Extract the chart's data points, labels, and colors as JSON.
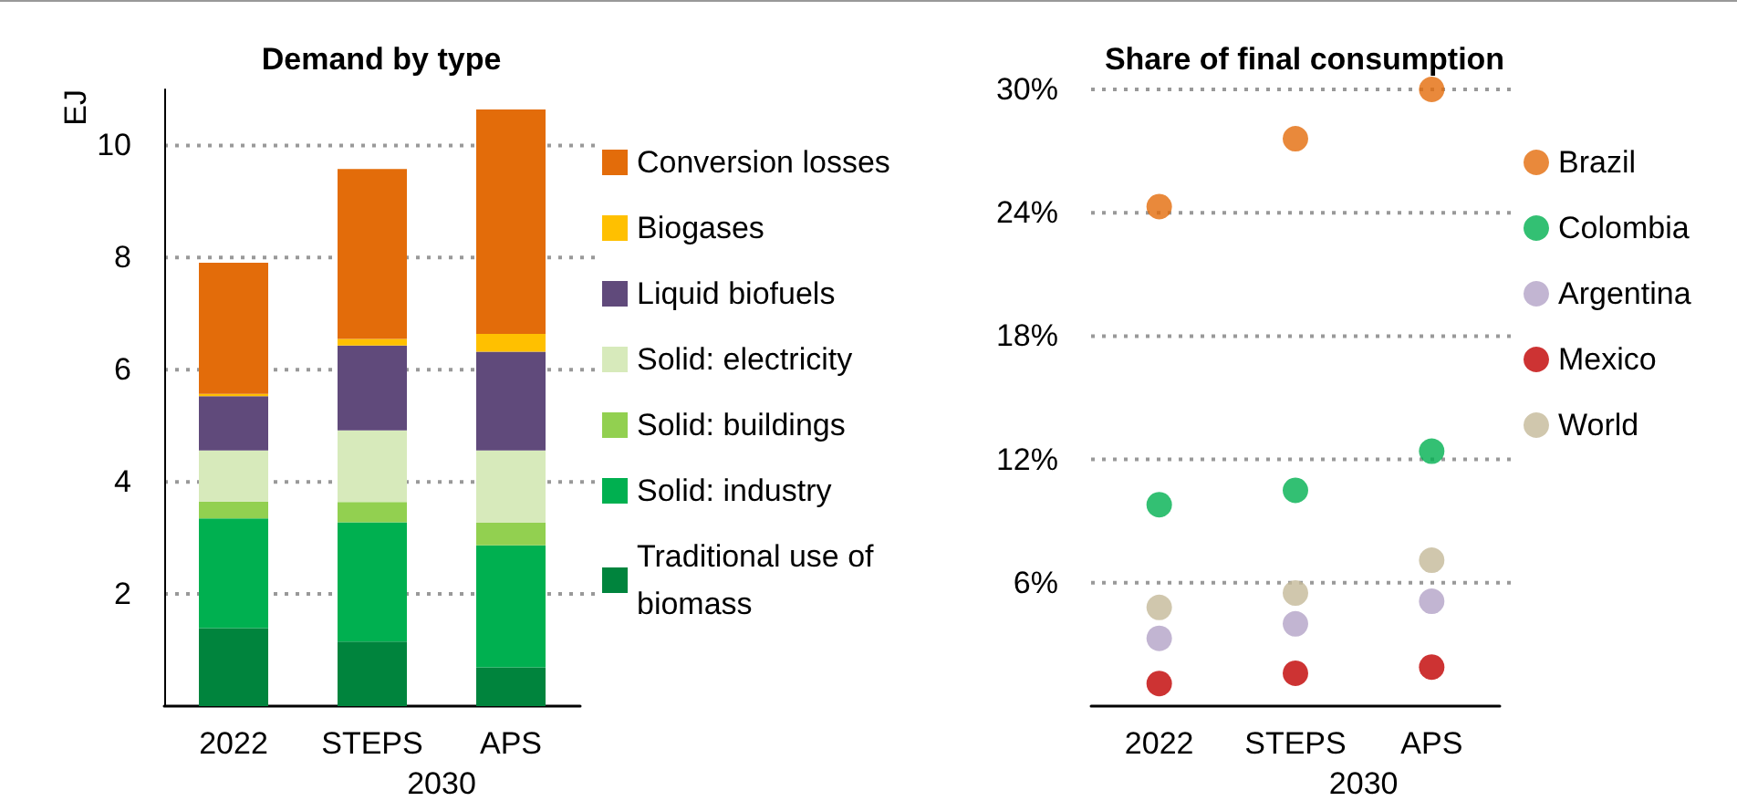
{
  "chart_data": [
    {
      "type": "bar",
      "title": "Demand by type",
      "ylabel": "EJ",
      "categories": [
        "2022",
        "STEPS",
        "APS"
      ],
      "annotations": [
        "2030"
      ],
      "stacked": true,
      "series": [
        {
          "name": "Traditional use of biomass",
          "color": "#00843d",
          "values": [
            1.39,
            1.15,
            0.69
          ]
        },
        {
          "name": "Solid: industry",
          "color": "#00b050",
          "values": [
            1.96,
            2.13,
            2.18
          ]
        },
        {
          "name": "Solid: buildings",
          "color": "#92d050",
          "values": [
            0.3,
            0.36,
            0.4
          ]
        },
        {
          "name": "Solid: electricity",
          "color": "#d7eabb",
          "values": [
            0.91,
            1.28,
            1.29
          ]
        },
        {
          "name": "Liquid biofuels",
          "color": "#604a7b",
          "values": [
            0.97,
            1.51,
            1.76
          ]
        },
        {
          "name": "Biogases",
          "color": "#ffc000",
          "values": [
            0.04,
            0.12,
            0.32
          ]
        },
        {
          "name": "Conversion losses",
          "color": "#e36c0a",
          "values": [
            2.34,
            3.03,
            4.0
          ]
        }
      ],
      "ylim": [
        0,
        11
      ],
      "yticks": [
        2,
        4,
        6,
        8,
        10
      ],
      "grid": "y",
      "legend": "right"
    },
    {
      "type": "scatter",
      "title": "Share of final consumption",
      "categories": [
        "2022",
        "STEPS",
        "APS"
      ],
      "annotations": [
        "2030"
      ],
      "marker": "circle",
      "series": [
        {
          "name": "Brazil",
          "color": "#e36c0a",
          "values": [
            24.3,
            27.6,
            30
          ]
        },
        {
          "name": "Colombia",
          "color": "#00b050",
          "values": [
            9.8,
            10.5,
            12.4
          ]
        },
        {
          "name": "Argentina",
          "color": "#b3a2c7",
          "values": [
            3.3,
            4.0,
            5.1
          ]
        },
        {
          "name": "Mexico",
          "color": "#c00000",
          "values": [
            1.1,
            1.6,
            1.9
          ]
        },
        {
          "name": "World",
          "color": "#c4b998",
          "values": [
            4.8,
            5.5,
            7.1
          ]
        }
      ],
      "ylim": [
        0,
        30
      ],
      "yticks": [
        {
          "value": 6,
          "label": "6%"
        },
        {
          "value": 12,
          "label": "12%"
        },
        {
          "value": 18,
          "label": "18%"
        },
        {
          "value": 24,
          "label": "24%"
        },
        {
          "value": 30,
          "label": "30%"
        }
      ],
      "grid": "y",
      "legend": "right"
    }
  ]
}
